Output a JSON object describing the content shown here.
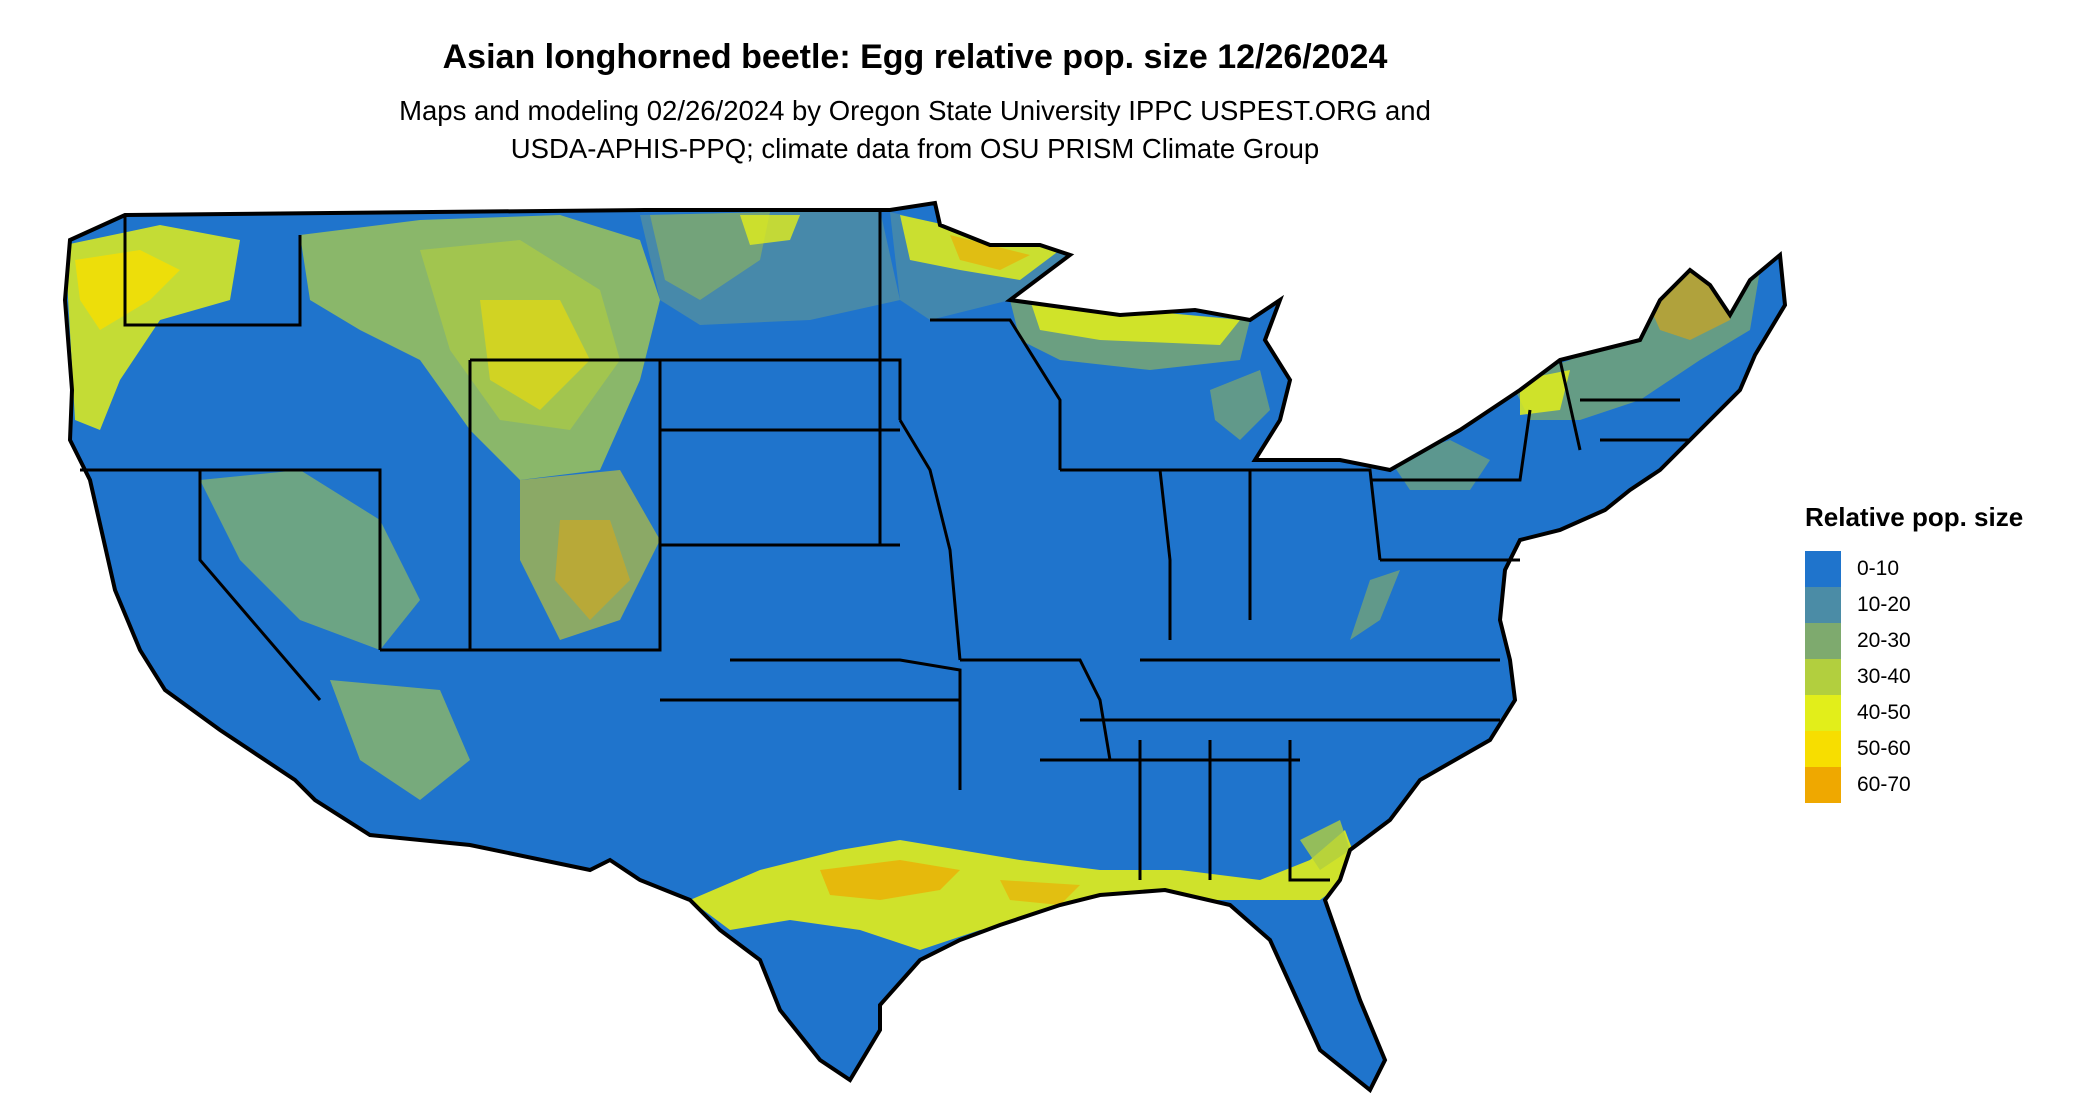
{
  "title": "Asian longhorned beetle: Egg relative pop. size 12/26/2024",
  "subtitle": [
    "Maps and modeling 02/26/2024 by Oregon State University IPPC USPEST.ORG and",
    "USDA-APHIS-PPQ; climate data from OSU PRISM Climate Group"
  ],
  "legend": {
    "title": "Relative pop. size",
    "items": [
      {
        "label": "0-10",
        "color": "#1f74cc"
      },
      {
        "label": "10-20",
        "color": "#4b8ca6"
      },
      {
        "label": "20-30",
        "color": "#7eaa6e"
      },
      {
        "label": "30-40",
        "color": "#b2cf3e"
      },
      {
        "label": "40-50",
        "color": "#e2ee1a"
      },
      {
        "label": "50-60",
        "color": "#f7de00"
      },
      {
        "label": "60-70",
        "color": "#efa800"
      }
    ]
  },
  "map": {
    "region": "conterminous United States",
    "base_color": "#1f74cc",
    "border_color": "#000000"
  }
}
